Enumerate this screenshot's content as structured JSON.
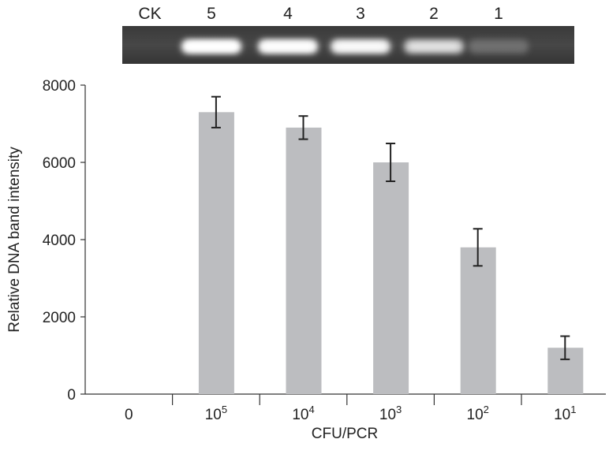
{
  "chart_data": {
    "type": "bar",
    "title": "",
    "xlabel": "CFU/PCR",
    "ylabel": "Relative DNA band intensity",
    "ylim": [
      0,
      8000
    ],
    "yticks": [
      "0",
      "2000",
      "4000",
      "6000",
      "8000"
    ],
    "categories": [
      {
        "base": "0",
        "exp": ""
      },
      {
        "base": "10",
        "exp": "5"
      },
      {
        "base": "10",
        "exp": "4"
      },
      {
        "base": "10",
        "exp": "3"
      },
      {
        "base": "10",
        "exp": "2"
      },
      {
        "base": "10",
        "exp": "1"
      }
    ],
    "values": [
      0,
      7300,
      6900,
      6000,
      3800,
      1200
    ],
    "errors": [
      0,
      400,
      300,
      490,
      480,
      300
    ],
    "bar_color": "#bcbdc0",
    "grid": false
  },
  "gel": {
    "lanes": [
      {
        "label": "CK",
        "intensity": 0
      },
      {
        "label": "5",
        "intensity": 1.0
      },
      {
        "label": "4",
        "intensity": 0.95
      },
      {
        "label": "3",
        "intensity": 0.85
      },
      {
        "label": "2",
        "intensity": 0.6
      },
      {
        "label": "1",
        "intensity": 0.2
      }
    ]
  }
}
